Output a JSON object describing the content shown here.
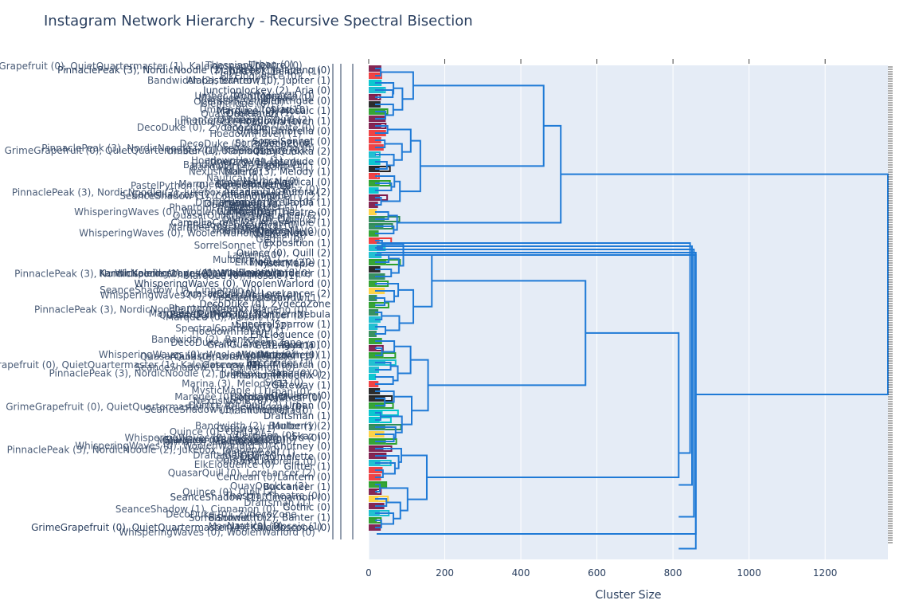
{
  "chart_data": {
    "type": "dendrogram",
    "title": "Instagram Network Hierarchy - Recursive Spectral Bisection",
    "xlabel": "Cluster Size",
    "ylabel": "",
    "xlim": [
      0,
      1365
    ],
    "x_ticks": [
      0,
      200,
      400,
      600,
      800,
      1000,
      1200
    ],
    "x_tick_labels": [
      "0",
      "200",
      "400",
      "600",
      "800",
      "1000",
      "1200"
    ],
    "grid": true,
    "legend": "none",
    "colors": {
      "link": "#1f7ad6",
      "plot_bg": "#e5ecf6",
      "grid": "#ffffff",
      "text": "#2a3f5f",
      "palette": [
        "#2ca02c",
        "#ef3b3b",
        "#17becf",
        "#7f1c4b",
        "#222222",
        "#ffd23f",
        "#2e8b57",
        "#00c5cd"
      ]
    },
    "top_splits": [
      {
        "name": "root",
        "size": 1365
      },
      {
        "name": "upper",
        "size": 505
      },
      {
        "name": "lower",
        "size": 860
      }
    ],
    "leaf_labels": [
      "PinnaclePeak (3), NordicNoodle (2), Jukebox, Jalapeno (0)",
      "AlabasterArrow (0), Jupiter (1)",
      "JunctionJockey (2), Aria (0)",
      "IsleIntrigue (0)",
      "Marquee (0), Mosaic (1)",
      "HoedownHaven (1)",
      "UmamiUmbrella (0)",
      "SorrelSonnet (0)",
      "QuayQuokka (2)",
      "Itinerary (1), Interlude (0)",
      "Marina (3), Melody (1)",
      "Nautical (0)",
      "Arcadia (1), Aurora (2)",
      "Umber (0), Utopia (1)",
      "ThespianTheatre (0)",
      "CamelliaCrest (2), AtlasAmble (1)",
      "NexusNoble (0)",
      "Exposition (1)",
      "Quince (0), Quill (2)",
      "MysticMaple (1)",
      "KarmicKaleidoscope (0), WildflowerWanderer (1)",
      "WhisperingWaves (0), WoolenWarlord (0)",
      "QuasarQuill (0), LoreLancer (2)",
      "DecoDuke (0), ZydecoZone",
      "PastelPython (0), NorthernNebula",
      "SpectralSparrow (1)",
      "ElkEloquence (0)",
      "GrailGuard (3), Iguana (0)",
      "Waterwheel (1)",
      "MotifMonarch (0)",
      "PhantomPhoenix (2)",
      "Gateway (1)",
      "Cerulean (0)",
      "Urban (0)",
      "Draftsman (1)",
      "Mulberry (2)",
      "Skaz (0)",
      "Chutney (0)",
      "OperaOmelette (0)",
      "Glitter (1)",
      "Lantern (0)",
      "Buccaneer (1)",
      "SeanceShadow (1), Cinnamon (0)",
      "Gothic (0)",
      "Bandwidth (2), Banter (1)",
      "GrimeGrapefruit (0), QuietQuartermaster (1), Kaleidoscope (0)"
    ]
  }
}
